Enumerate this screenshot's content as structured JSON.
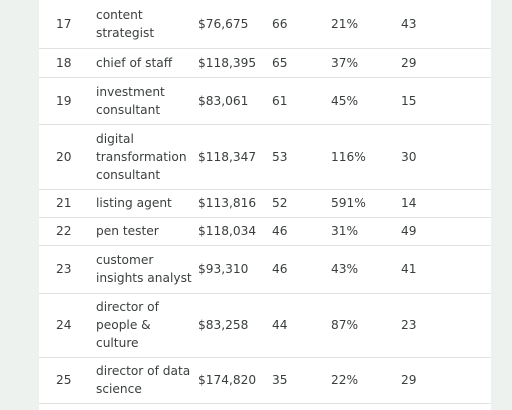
{
  "rows": [
    {
      "rank": "17",
      "title": "content strategist",
      "salary": "$76,675",
      "count": "66",
      "growth": "21%",
      "last": "43"
    },
    {
      "rank": "18",
      "title": "chief of staff",
      "salary": "$118,395",
      "count": "65",
      "growth": "37%",
      "last": "29"
    },
    {
      "rank": "19",
      "title": "investment consultant",
      "salary": "$83,061",
      "count": "61",
      "growth": "45%",
      "last": "15"
    },
    {
      "rank": "20",
      "title": "digital transformation consultant",
      "salary": "$118,347",
      "count": "53",
      "growth": "116%",
      "last": "30"
    },
    {
      "rank": "21",
      "title": "listing agent",
      "salary": "$113,816",
      "count": "52",
      "growth": "591%",
      "last": "14"
    },
    {
      "rank": "22",
      "title": "pen tester",
      "salary": "$118,034",
      "count": "46",
      "growth": "31%",
      "last": "49"
    },
    {
      "rank": "23",
      "title": "customer insights analyst",
      "salary": "$93,310",
      "count": "46",
      "growth": "43%",
      "last": "41"
    },
    {
      "rank": "24",
      "title": "director of people & culture",
      "salary": "$83,258",
      "count": "44",
      "growth": "87%",
      "last": "23"
    },
    {
      "rank": "25",
      "title": "director of data science",
      "salary": "$174,820",
      "count": "35",
      "growth": "22%",
      "last": "29"
    }
  ]
}
